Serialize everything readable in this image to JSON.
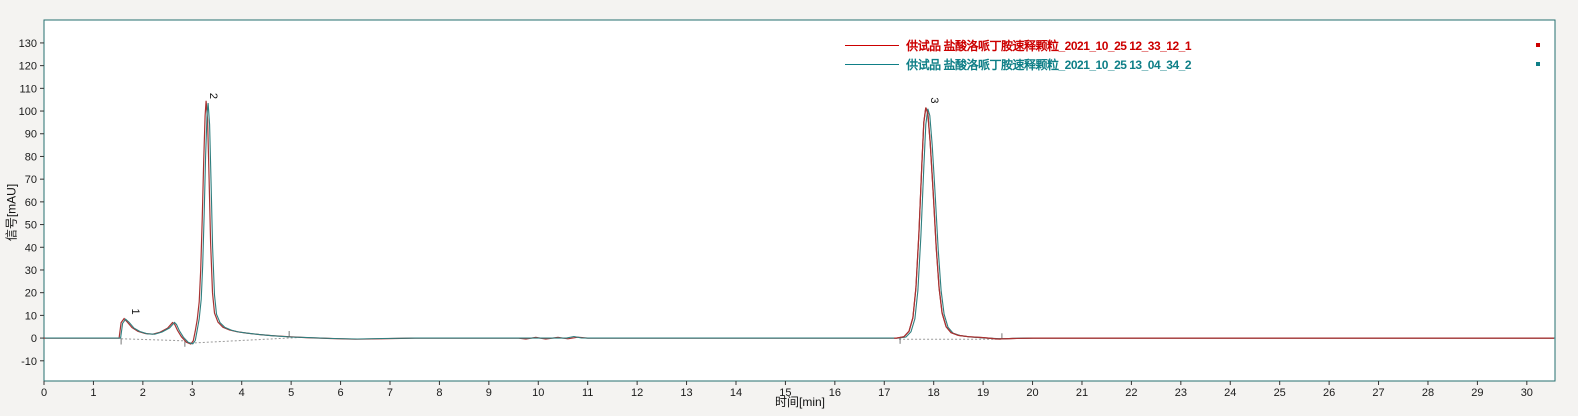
{
  "window": {
    "background": "#f4f3f1",
    "plot_background": "#ffffff",
    "plot_border_color": "#256f6f"
  },
  "chart_data": {
    "type": "line",
    "title": "",
    "x_title": "时间[min]",
    "y_title": "信号[mAU]",
    "xlim": [
      0,
      30.57
    ],
    "ylim": [
      -18.9,
      140.1
    ],
    "x_ticks": [
      0,
      1,
      2,
      3,
      4,
      5,
      6,
      7,
      8,
      9,
      10,
      11,
      12,
      13,
      14,
      15,
      16,
      17,
      18,
      19,
      20,
      21,
      22,
      23,
      24,
      25,
      26,
      27,
      28,
      29,
      30
    ],
    "y_ticks": [
      -10,
      0,
      10,
      20,
      30,
      40,
      50,
      60,
      70,
      80,
      90,
      100,
      110,
      120,
      130
    ],
    "grid": false,
    "legend_position": "top-right",
    "series": [
      {
        "name": "供试品  盐酸洛哌丁胺速释颗粒_2021_10_25 12_33_12_1",
        "color": "#a83232",
        "legend_color": "#cc0000",
        "points": [
          [
            0,
            0
          ],
          [
            1.52,
            0
          ],
          [
            1.56,
            6.8
          ],
          [
            1.62,
            8.6
          ],
          [
            1.68,
            7.2
          ],
          [
            1.78,
            4.6
          ],
          [
            1.9,
            3.0
          ],
          [
            2.05,
            2.0
          ],
          [
            2.2,
            1.7
          ],
          [
            2.35,
            2.6
          ],
          [
            2.5,
            4.4
          ],
          [
            2.6,
            6.8
          ],
          [
            2.64,
            6.2
          ],
          [
            2.7,
            3.4
          ],
          [
            2.78,
            0.6
          ],
          [
            2.88,
            -1.8
          ],
          [
            2.97,
            -2.6
          ],
          [
            3.02,
            -1.2
          ],
          [
            3.06,
            3.0
          ],
          [
            3.1,
            8.0
          ],
          [
            3.14,
            16
          ],
          [
            3.17,
            30
          ],
          [
            3.2,
            52
          ],
          [
            3.23,
            78
          ],
          [
            3.26,
            98
          ],
          [
            3.28,
            104.5
          ],
          [
            3.31,
            96
          ],
          [
            3.34,
            70
          ],
          [
            3.37,
            42
          ],
          [
            3.41,
            20
          ],
          [
            3.45,
            11
          ],
          [
            3.52,
            7
          ],
          [
            3.62,
            4.8
          ],
          [
            3.75,
            3.6
          ],
          [
            3.9,
            2.8
          ],
          [
            4.1,
            2.2
          ],
          [
            4.35,
            1.6
          ],
          [
            4.6,
            1.1
          ],
          [
            4.95,
            0.6
          ],
          [
            5.3,
            0.2
          ],
          [
            5.8,
            -0.2
          ],
          [
            6.3,
            -0.5
          ],
          [
            6.8,
            -0.3
          ],
          [
            7.5,
            0
          ],
          [
            9.6,
            0
          ],
          [
            9.75,
            -0.4
          ],
          [
            9.95,
            0.3
          ],
          [
            10.15,
            -0.4
          ],
          [
            10.4,
            0.3
          ],
          [
            10.6,
            -0.3
          ],
          [
            10.8,
            0.4
          ],
          [
            11.0,
            0
          ],
          [
            17.25,
            0
          ],
          [
            17.4,
            0.6
          ],
          [
            17.5,
            3
          ],
          [
            17.58,
            9
          ],
          [
            17.64,
            22
          ],
          [
            17.7,
            46
          ],
          [
            17.76,
            76
          ],
          [
            17.8,
            95
          ],
          [
            17.84,
            101.5
          ],
          [
            17.88,
            99
          ],
          [
            17.93,
            86
          ],
          [
            17.99,
            64
          ],
          [
            18.05,
            40
          ],
          [
            18.11,
            22
          ],
          [
            18.17,
            11
          ],
          [
            18.25,
            5
          ],
          [
            18.35,
            2.4
          ],
          [
            18.5,
            1.2
          ],
          [
            18.7,
            0.6
          ],
          [
            19.0,
            0.2
          ],
          [
            19.3,
            -0.4
          ],
          [
            19.6,
            -0.2
          ],
          [
            20.0,
            0
          ],
          [
            30.55,
            0
          ]
        ]
      },
      {
        "name": "供试品  盐酸洛哌丁胺速释颗粒_2021_10_25 13_04_34_2",
        "color": "#2e7f7f",
        "legend_color": "#0f7f87",
        "points": [
          [
            0,
            0
          ],
          [
            1.53,
            0
          ],
          [
            1.57,
            6.5
          ],
          [
            1.63,
            8.3
          ],
          [
            1.7,
            7.0
          ],
          [
            1.8,
            4.4
          ],
          [
            1.92,
            2.9
          ],
          [
            2.07,
            1.9
          ],
          [
            2.22,
            1.7
          ],
          [
            2.37,
            2.7
          ],
          [
            2.52,
            4.5
          ],
          [
            2.62,
            6.9
          ],
          [
            2.66,
            6.0
          ],
          [
            2.72,
            3.2
          ],
          [
            2.8,
            0.4
          ],
          [
            2.9,
            -1.9
          ],
          [
            2.99,
            -2.5
          ],
          [
            3.04,
            -1.0
          ],
          [
            3.08,
            3.5
          ],
          [
            3.12,
            8.5
          ],
          [
            3.16,
            17
          ],
          [
            3.19,
            32
          ],
          [
            3.22,
            55
          ],
          [
            3.25,
            80
          ],
          [
            3.28,
            99
          ],
          [
            3.3,
            103.5
          ],
          [
            3.33,
            94
          ],
          [
            3.36,
            68
          ],
          [
            3.39,
            40
          ],
          [
            3.43,
            19
          ],
          [
            3.47,
            10.5
          ],
          [
            3.54,
            6.8
          ],
          [
            3.64,
            4.7
          ],
          [
            3.77,
            3.5
          ],
          [
            3.92,
            2.7
          ],
          [
            4.12,
            2.1
          ],
          [
            4.37,
            1.5
          ],
          [
            4.62,
            1.0
          ],
          [
            4.97,
            0.5
          ],
          [
            5.32,
            0.2
          ],
          [
            5.82,
            -0.2
          ],
          [
            6.32,
            -0.4
          ],
          [
            6.82,
            -0.2
          ],
          [
            7.5,
            0
          ],
          [
            10.55,
            0
          ],
          [
            10.7,
            0.7
          ],
          [
            10.85,
            0.1
          ],
          [
            11.0,
            0
          ],
          [
            17.27,
            0
          ],
          [
            17.42,
            0.5
          ],
          [
            17.52,
            2.8
          ],
          [
            17.6,
            8.5
          ],
          [
            17.66,
            21
          ],
          [
            17.72,
            45
          ],
          [
            17.78,
            75
          ],
          [
            17.82,
            94
          ],
          [
            17.86,
            101
          ],
          [
            17.9,
            98
          ],
          [
            17.95,
            85
          ],
          [
            18.01,
            63
          ],
          [
            18.07,
            39
          ],
          [
            18.13,
            21
          ],
          [
            18.19,
            10.5
          ],
          [
            18.27,
            4.8
          ],
          [
            18.37,
            2.2
          ],
          [
            18.52,
            1.1
          ],
          [
            18.72,
            0.5
          ],
          [
            19.0,
            0.1
          ],
          [
            19.35,
            -0.3
          ],
          [
            19.65,
            -0.1
          ],
          [
            20.0,
            0
          ],
          [
            30.55,
            0
          ]
        ]
      }
    ],
    "peaks": [
      {
        "label": "1",
        "t": 1.78,
        "v": 13
      },
      {
        "label": "2",
        "t": 3.36,
        "v": 108
      },
      {
        "label": "3",
        "t": 17.95,
        "v": 106
      }
    ],
    "integration": {
      "color": "#9a9a9a",
      "baselines": [
        [
          [
            1.56,
            -0.3
          ],
          [
            2.85,
            -1.2
          ]
        ],
        [
          [
            2.97,
            -2.2
          ],
          [
            5.2,
            0.3
          ]
        ],
        [
          [
            17.3,
            -0.5
          ],
          [
            19.4,
            -0.5
          ]
        ]
      ],
      "tick_marks": [
        {
          "t": 1.56,
          "v": -1.5
        },
        {
          "t": 2.85,
          "v": -2.5
        },
        {
          "t": 4.96,
          "v": 1.8
        },
        {
          "t": 17.32,
          "v": -1.2
        },
        {
          "t": 19.38,
          "v": 0.8
        }
      ]
    }
  },
  "legend": {
    "trailing_marker": "."
  }
}
